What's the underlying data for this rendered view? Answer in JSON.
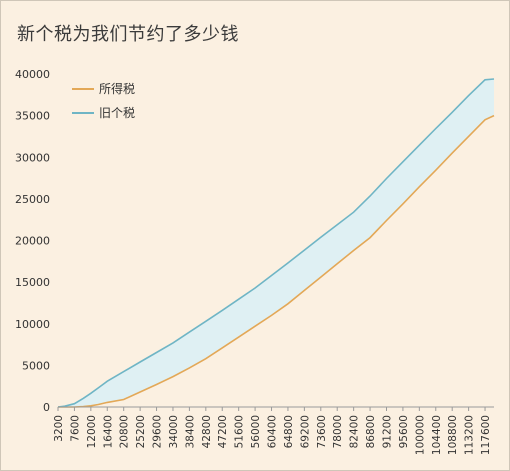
{
  "chart_data": {
    "type": "area",
    "title": "新个税为我们节约了多少钱",
    "xlabel": "",
    "ylabel": "",
    "x": [
      3200,
      5000,
      7600,
      10000,
      12000,
      14000,
      16400,
      20800,
      25200,
      29600,
      34000,
      38400,
      42800,
      47200,
      51600,
      56000,
      60400,
      64800,
      69200,
      73600,
      78000,
      82400,
      86800,
      91200,
      95600,
      100000,
      104400,
      108800,
      113200,
      117600,
      120000
    ],
    "x_ticks": [
      "3200",
      "7600",
      "12000",
      "16400",
      "20800",
      "25200",
      "29600",
      "34000",
      "38400",
      "42800",
      "47200",
      "51600",
      "56000",
      "60400",
      "64800",
      "69200",
      "73600",
      "78000",
      "82400",
      "86800",
      "91200",
      "95600",
      "100000",
      "104400",
      "108800",
      "113200",
      "117600"
    ],
    "y_ticks": [
      "0",
      "5000",
      "10000",
      "15000",
      "20000",
      "25000",
      "30000",
      "35000",
      "40000"
    ],
    "ylim": [
      0,
      40000
    ],
    "grid": false,
    "legend_position": "top-left",
    "series": [
      {
        "name": "所得税",
        "color": "#e3a857",
        "values": [
          0,
          0,
          0,
          50,
          150,
          300,
          550,
          900,
          1800,
          2700,
          3650,
          4700,
          5800,
          7100,
          8400,
          9700,
          11000,
          12400,
          14000,
          15600,
          17200,
          18800,
          20350,
          22400,
          24400,
          26450,
          28450,
          30500,
          32500,
          34500,
          35000
        ]
      },
      {
        "name": "旧个税",
        "color": "#6fb5c5",
        "values": [
          0,
          100,
          400,
          1050,
          1650,
          2300,
          3100,
          4250,
          5400,
          6550,
          7700,
          9000,
          10300,
          11600,
          12950,
          14300,
          15800,
          17300,
          18850,
          20400,
          21900,
          23400,
          25350,
          27450,
          29450,
          31450,
          33450,
          35400,
          37400,
          39300,
          39400
        ]
      }
    ],
    "fill_between_color": "#dff0f3"
  }
}
